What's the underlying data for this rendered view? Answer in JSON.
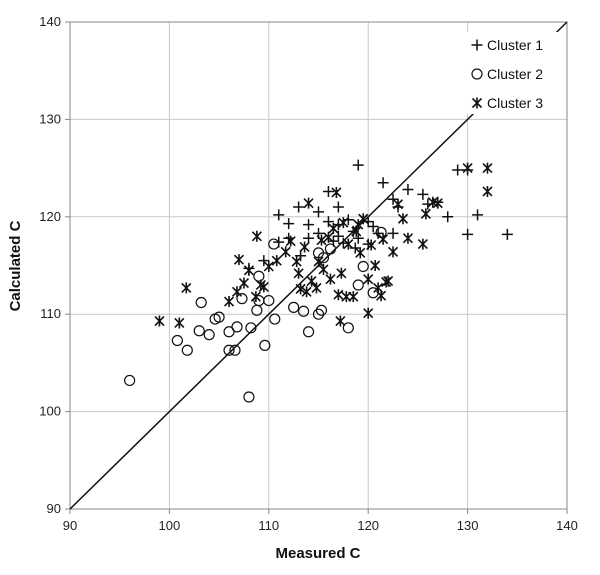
{
  "chart_data": {
    "type": "scatter",
    "title": "",
    "xlabel": "Measured C",
    "ylabel": "Calculated C",
    "xlim": [
      90,
      140
    ],
    "ylim": [
      90,
      140
    ],
    "xticks": [
      90,
      100,
      110,
      120,
      130,
      140
    ],
    "yticks": [
      90,
      100,
      110,
      120,
      130,
      140
    ],
    "x_tick_labels": [
      "90",
      "100",
      "110",
      "120",
      "130",
      "140"
    ],
    "y_tick_labels": [
      "90",
      "100",
      "110",
      "120",
      "130",
      "140"
    ],
    "grid": true,
    "legend_position": "top-right",
    "reference_line": {
      "x": [
        90,
        140
      ],
      "y": [
        90,
        140
      ]
    },
    "colors": {
      "markers": "#111111",
      "grid": "#c8c8c8",
      "axis": "#888888"
    },
    "series": [
      {
        "name": "Cluster 1",
        "marker": "plus",
        "points": [
          [
            119,
            125.3
          ],
          [
            130,
            124.8
          ],
          [
            129,
            124.8
          ],
          [
            121.5,
            123.5
          ],
          [
            124,
            122.8
          ],
          [
            125.5,
            122.3
          ],
          [
            122.5,
            121.8
          ],
          [
            123,
            121
          ],
          [
            126,
            121.3
          ],
          [
            127,
            121.5
          ],
          [
            111,
            120.2
          ],
          [
            115,
            120.5
          ],
          [
            117,
            121
          ],
          [
            113,
            121
          ],
          [
            128,
            120
          ],
          [
            131,
            120.2
          ],
          [
            120,
            119.5
          ],
          [
            116,
            119.5
          ],
          [
            118,
            119.7
          ],
          [
            112,
            119.3
          ],
          [
            114,
            119.2
          ],
          [
            117,
            119.2
          ],
          [
            120.5,
            119
          ],
          [
            122.5,
            118.3
          ],
          [
            118.5,
            118.5
          ],
          [
            115,
            118.3
          ],
          [
            117,
            118
          ],
          [
            119,
            117.8
          ],
          [
            121,
            118.3
          ],
          [
            130,
            118.2
          ],
          [
            134,
            118.2
          ],
          [
            112,
            117.8
          ],
          [
            114,
            117.8
          ],
          [
            116.5,
            117.5
          ],
          [
            117.5,
            117.3
          ],
          [
            120,
            117.2
          ],
          [
            116,
            122.6
          ],
          [
            111,
            117.4
          ],
          [
            109.5,
            115.5
          ],
          [
            108,
            114.7
          ],
          [
            113.2,
            116
          ],
          [
            118.7,
            116.8
          ]
        ]
      },
      {
        "name": "Cluster 2",
        "marker": "circle",
        "points": [
          [
            96,
            103.2
          ],
          [
            100.8,
            107.3
          ],
          [
            101.8,
            106.3
          ],
          [
            103,
            108.3
          ],
          [
            103.2,
            111.2
          ],
          [
            104,
            107.9
          ],
          [
            104.6,
            109.5
          ],
          [
            105,
            109.7
          ],
          [
            106,
            106.3
          ],
          [
            106,
            108.2
          ],
          [
            106.6,
            106.3
          ],
          [
            106.8,
            108.7
          ],
          [
            107.3,
            111.6
          ],
          [
            108,
            101.5
          ],
          [
            108.2,
            108.6
          ],
          [
            108.8,
            110.4
          ],
          [
            109,
            111.4
          ],
          [
            109,
            113.9
          ],
          [
            109.6,
            106.8
          ],
          [
            110,
            111.4
          ],
          [
            110.5,
            117.2
          ],
          [
            110.6,
            109.5
          ],
          [
            112.5,
            110.7
          ],
          [
            113.5,
            110.3
          ],
          [
            114,
            108.2
          ],
          [
            115,
            110
          ],
          [
            115.3,
            110.4
          ],
          [
            115.5,
            115.8
          ],
          [
            118,
            108.6
          ],
          [
            119,
            113
          ],
          [
            119.5,
            114.9
          ],
          [
            120.5,
            112.2
          ],
          [
            121.3,
            118.4
          ],
          [
            115,
            116.3
          ],
          [
            116.2,
            116.7
          ]
        ]
      },
      {
        "name": "Cluster 3",
        "marker": "asterisk",
        "points": [
          [
            99,
            109.3
          ],
          [
            101,
            109.1
          ],
          [
            101.7,
            112.7
          ],
          [
            106,
            111.3
          ],
          [
            106.8,
            112.3
          ],
          [
            107,
            115.6
          ],
          [
            107.5,
            113.2
          ],
          [
            108,
            114.5
          ],
          [
            108.7,
            111.8
          ],
          [
            108.8,
            118
          ],
          [
            109.2,
            113
          ],
          [
            109.5,
            112.8
          ],
          [
            110,
            114.9
          ],
          [
            110.8,
            115.5
          ],
          [
            111.7,
            116.4
          ],
          [
            112.2,
            117.5
          ],
          [
            112.8,
            115.4
          ],
          [
            113,
            114.2
          ],
          [
            113.2,
            112.6
          ],
          [
            113.6,
            116.9
          ],
          [
            113.8,
            112.3
          ],
          [
            114,
            121.4
          ],
          [
            114.3,
            113.4
          ],
          [
            114.8,
            112.7
          ],
          [
            115,
            115.4
          ],
          [
            115.5,
            114.6
          ],
          [
            116,
            117.9
          ],
          [
            116.2,
            113.6
          ],
          [
            116.5,
            118.8
          ],
          [
            116.8,
            122.5
          ],
          [
            117,
            112
          ],
          [
            117.3,
            114.2
          ],
          [
            117.5,
            119.4
          ],
          [
            117.8,
            111.8
          ],
          [
            118,
            117.2
          ],
          [
            118.5,
            111.8
          ],
          [
            118.8,
            118.5
          ],
          [
            119.2,
            116.3
          ],
          [
            119.5,
            119.8
          ],
          [
            120,
            110.1
          ],
          [
            120,
            113.6
          ],
          [
            120.3,
            117.1
          ],
          [
            120.7,
            115
          ],
          [
            121,
            112.7
          ],
          [
            121.3,
            111.9
          ],
          [
            121.5,
            117.7
          ],
          [
            121.8,
            113.3
          ],
          [
            122,
            113.4
          ],
          [
            122.5,
            116.4
          ],
          [
            123,
            121.3
          ],
          [
            123.5,
            119.8
          ],
          [
            124,
            117.8
          ],
          [
            125.5,
            117.2
          ],
          [
            125.8,
            120.3
          ],
          [
            126.5,
            121.5
          ],
          [
            127,
            121.4
          ],
          [
            130,
            125
          ],
          [
            132,
            125
          ],
          [
            132,
            122.6
          ],
          [
            117.2,
            109.3
          ],
          [
            119,
            119.2
          ],
          [
            115.3,
            117.6
          ]
        ]
      }
    ]
  }
}
